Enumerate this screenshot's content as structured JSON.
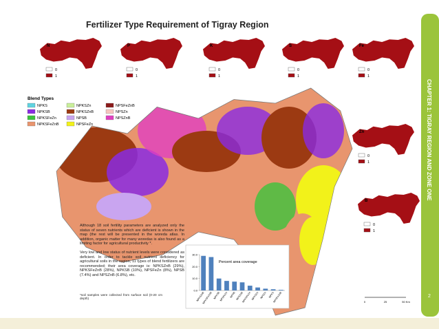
{
  "title": "Fertilizer Type Requirement of Tigray Region",
  "nutrient_maps": [
    {
      "label": "N"
    },
    {
      "label": "P"
    },
    {
      "label": "K"
    },
    {
      "label": "S"
    },
    {
      "label": "Fe"
    },
    {
      "label": "Zn"
    },
    {
      "label": "B"
    }
  ],
  "nutrient_legend": [
    "0",
    "1"
  ],
  "blend_legend": {
    "title": "Blend Types",
    "items": [
      {
        "name": "NPKS",
        "color": "#5fd3e0"
      },
      {
        "name": "NPKSB",
        "color": "#8a2be2"
      },
      {
        "name": "NPKSFeZn",
        "color": "#3cc33c"
      },
      {
        "name": "NPKSFeZnB",
        "color": "#e8956e"
      },
      {
        "name": "NPKSZn",
        "color": "#c9ef9a"
      },
      {
        "name": "NPKSZnB",
        "color": "#9c3a12"
      },
      {
        "name": "NPSB",
        "color": "#c9a5f0"
      },
      {
        "name": "NPSFeZn",
        "color": "#f2f21a"
      },
      {
        "name": "NPSFeZnB",
        "color": "#8b1a1a"
      },
      {
        "name": "NPSZn",
        "color": "#f6c6bf"
      },
      {
        "name": "NPSZnB",
        "color": "#e040c0"
      }
    ]
  },
  "paragraphs": [
    "Although 18 soil fertility parameters are analyzed only the status of seven nutrients which are deficient is shown in the map (the rest will be presented in the woreda atlas. In addition, organic matter for many woredas is also found as a limiting factor for agricultural productivity *.",
    "Very low and low status of nutrient levels were considered as deficient. In order to tackle soil nutrient deficiency for agricultural soils in the region, 11 types of blend fertilizers are recommended; their area coverage is: NPKSZnB (29%), NPKSFeZnB (28%), NPKSB (10%), NPSFeZn (8%), NPSB (7.4%) and NPSZnB (6.8%), etc."
  ],
  "footnote": "*soil samples were collected from surface soil (0-20 cm depth)",
  "sidebar": "CHAPTER 1: TIGRAY REGION AND ZONE ONE",
  "page_number": "2",
  "scale_bar": [
    "0",
    "25",
    "50 Km"
  ],
  "chart_data": {
    "type": "bar",
    "title": "Percent area coverage",
    "categories": [
      "NPKSZnB",
      "NPKSFeZnB",
      "NPKSB",
      "NPSFeZn",
      "NPSB",
      "NPSZnB",
      "NPKSFeZn",
      "NPKSZn",
      "NPSZn",
      "NPKS",
      "NPSFeZnB"
    ],
    "values": [
      29,
      28,
      10,
      8,
      7.4,
      6.8,
      4,
      2.5,
      1.5,
      1,
      0.5
    ],
    "color": "#4f81bd",
    "ylim": [
      0,
      30
    ],
    "yticks": [
      {
        "value": 0,
        "label": "0.0"
      },
      {
        "value": 10,
        "label": "10.0"
      },
      {
        "value": 20,
        "label": "20.0"
      },
      {
        "value": 30,
        "label": "30.0"
      }
    ]
  }
}
